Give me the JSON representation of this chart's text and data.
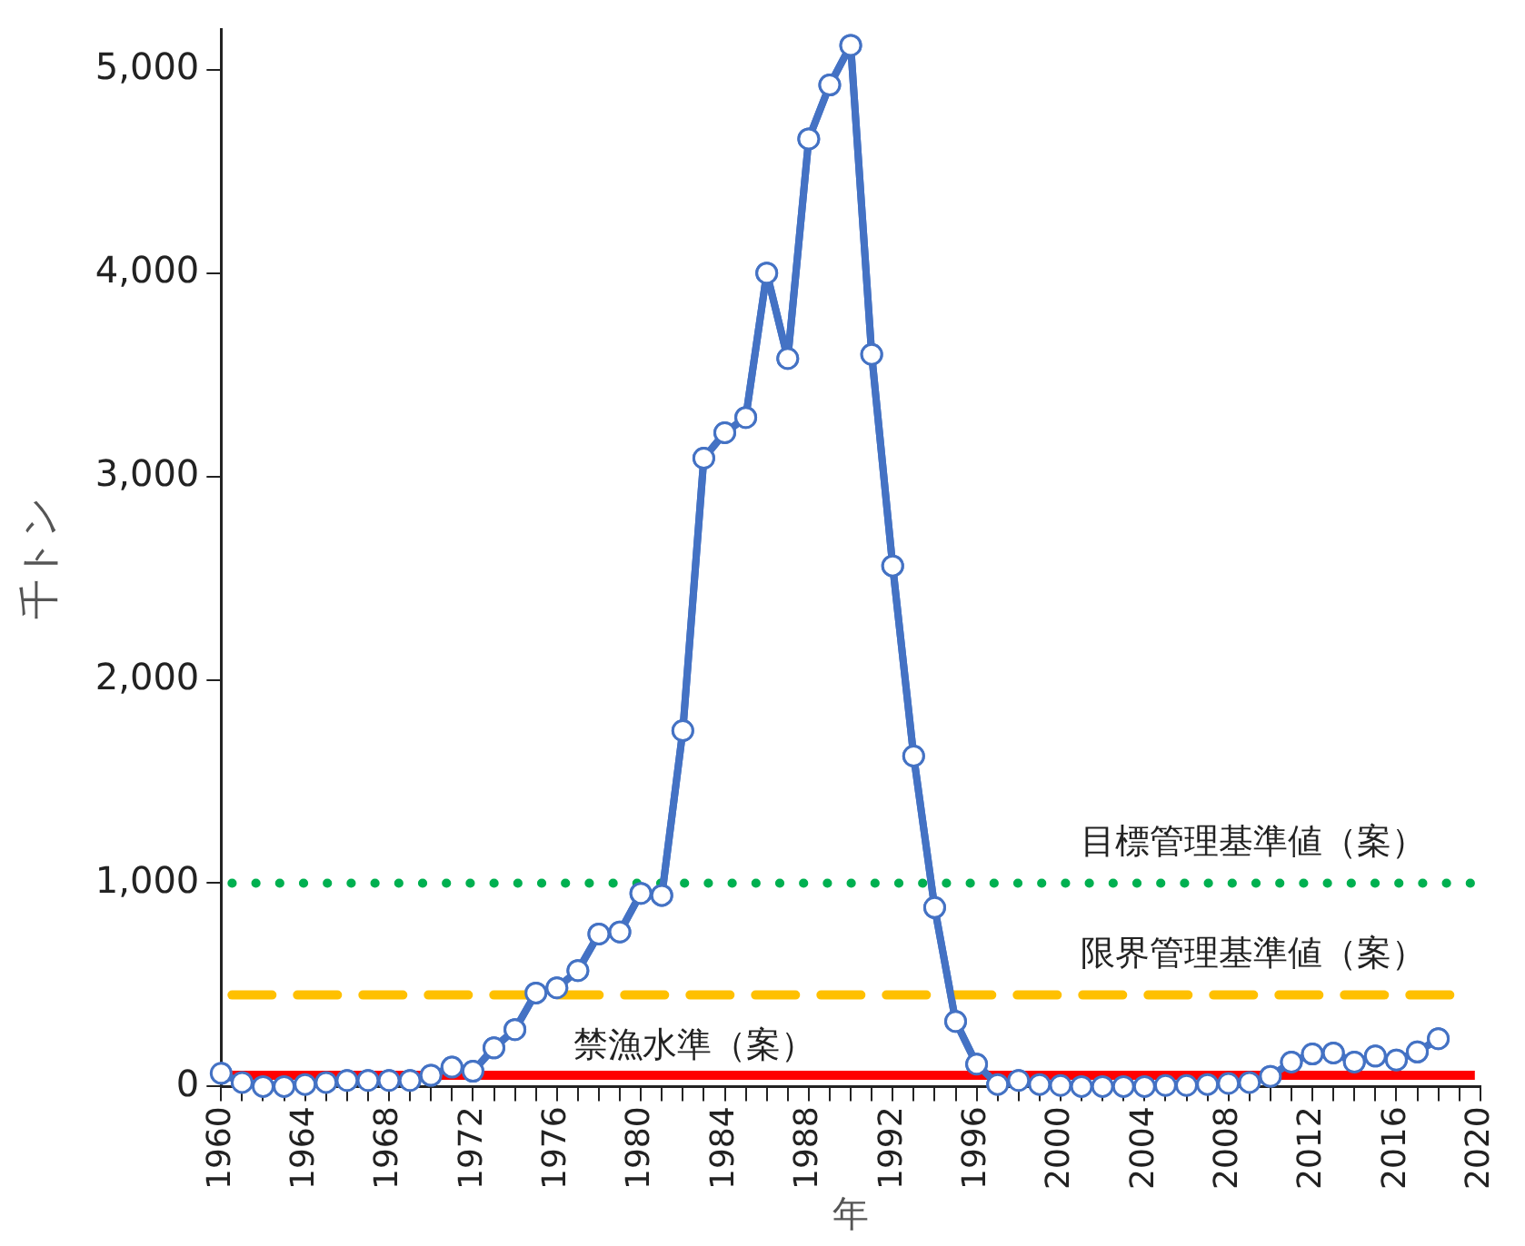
{
  "chart_data": {
    "type": "line",
    "xlabel": "年",
    "ylabel": "千トン",
    "x": [
      1960,
      1961,
      1962,
      1963,
      1964,
      1965,
      1966,
      1967,
      1968,
      1969,
      1970,
      1971,
      1972,
      1973,
      1974,
      1975,
      1976,
      1977,
      1978,
      1979,
      1980,
      1981,
      1982,
      1983,
      1984,
      1985,
      1986,
      1987,
      1988,
      1989,
      1990,
      1991,
      1992,
      1993,
      1994,
      1995,
      1996,
      1997,
      1998,
      1999,
      2000,
      2001,
      2002,
      2003,
      2004,
      2005,
      2006,
      2007,
      2008,
      2009,
      2010,
      2011,
      2012,
      2013,
      2014,
      2015,
      2016,
      2017,
      2018
    ],
    "series": [
      {
        "color": "#4472c4",
        "values": [
          65,
          20,
          0,
          0,
          10,
          20,
          30,
          30,
          30,
          30,
          55,
          95,
          75,
          190,
          280,
          460,
          485,
          570,
          750,
          760,
          950,
          940,
          1750,
          3090,
          3215,
          3290,
          4000,
          3580,
          4660,
          4925,
          5120,
          3600,
          2560,
          1625,
          880,
          320,
          110,
          10,
          30,
          10,
          5,
          0,
          0,
          0,
          0,
          5,
          5,
          10,
          15,
          20,
          50,
          120,
          160,
          165,
          120,
          150,
          130,
          170,
          235
        ]
      }
    ],
    "xlim": [
      1960,
      2020
    ],
    "xticks": [
      1960,
      {
        "value": 1961,
        "label": null
      },
      {
        "value": 1962,
        "label": null
      },
      {
        "value": 1963,
        "label": null
      },
      1964,
      {
        "value": 1965,
        "label": null
      },
      {
        "value": 1966,
        "label": null
      },
      {
        "value": 1967,
        "label": null
      },
      1968,
      {
        "value": 1969,
        "label": null
      },
      {
        "value": 1970,
        "label": null
      },
      {
        "value": 1971,
        "label": null
      },
      1972,
      {
        "value": 1973,
        "label": null
      },
      {
        "value": 1974,
        "label": null
      },
      {
        "value": 1975,
        "label": null
      },
      1976,
      {
        "value": 1977,
        "label": null
      },
      {
        "value": 1978,
        "label": null
      },
      {
        "value": 1979,
        "label": null
      },
      1980,
      {
        "value": 1981,
        "label": null
      },
      {
        "value": 1982,
        "label": null
      },
      {
        "value": 1983,
        "label": null
      },
      1984,
      {
        "value": 1985,
        "label": null
      },
      {
        "value": 1986,
        "label": null
      },
      {
        "value": 1987,
        "label": null
      },
      1988,
      {
        "value": 1989,
        "label": null
      },
      {
        "value": 1990,
        "label": null
      },
      {
        "value": 1991,
        "label": null
      },
      1992,
      {
        "value": 1993,
        "label": null
      },
      {
        "value": 1994,
        "label": null
      },
      {
        "value": 1995,
        "label": null
      },
      1996,
      {
        "value": 1997,
        "label": null
      },
      {
        "value": 1998,
        "label": null
      },
      {
        "value": 1999,
        "label": null
      },
      2000,
      {
        "value": 2001,
        "label": null
      },
      {
        "value": 2002,
        "label": null
      },
      {
        "value": 2003,
        "label": null
      },
      2004,
      {
        "value": 2005,
        "label": null
      },
      {
        "value": 2006,
        "label": null
      },
      {
        "value": 2007,
        "label": null
      },
      2008,
      {
        "value": 2009,
        "label": null
      },
      {
        "value": 2010,
        "label": null
      },
      {
        "value": 2011,
        "label": null
      },
      2012,
      {
        "value": 2013,
        "label": null
      },
      {
        "value": 2014,
        "label": null
      },
      {
        "value": 2015,
        "label": null
      },
      2016,
      {
        "value": 2017,
        "label": null
      },
      {
        "value": 2018,
        "label": null
      },
      {
        "value": 2019,
        "label": null
      },
      2020
    ],
    "ylim": [
      0,
      5200
    ],
    "yticks": [
      0,
      {
        "value": 1000,
        "label": "1,000"
      },
      {
        "value": 2000,
        "label": "2,000"
      },
      {
        "value": 3000,
        "label": "3,000"
      },
      {
        "value": 4000,
        "label": "4,000"
      },
      {
        "value": 5000,
        "label": "5,000"
      }
    ],
    "ref_lines": [
      {
        "axis": "y",
        "value": 1000,
        "label": "目標管理基準値（案）",
        "color": "#00b050",
        "line_style": "dotted"
      },
      {
        "axis": "y",
        "value": 450,
        "label": "限界管理基準値（案）",
        "color": "#ffc000",
        "line_style": "dashed"
      },
      {
        "axis": "y",
        "value": 55,
        "label": "禁漁水準（案）",
        "color": "#ff0000",
        "line_style": "solid"
      }
    ],
    "grid": false,
    "legend": false,
    "marker": "circle",
    "line_style": "solid"
  }
}
